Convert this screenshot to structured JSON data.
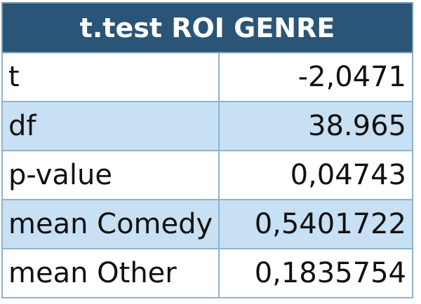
{
  "table": {
    "title": "t.test ROI GENRE",
    "rows": [
      {
        "label": "t",
        "value": "-2,0471"
      },
      {
        "label": "df",
        "value": "38.965"
      },
      {
        "label": "p-value",
        "value": "0,04743"
      },
      {
        "label": "mean Comedy",
        "value": "0,5401722"
      },
      {
        "label": "mean Other",
        "value": "0,1835754"
      }
    ]
  },
  "colors": {
    "header_background": "#2a5577",
    "header_text": "#ffffff",
    "alt_row_background": "#c7e0f3",
    "border": "#8fb1cf"
  }
}
